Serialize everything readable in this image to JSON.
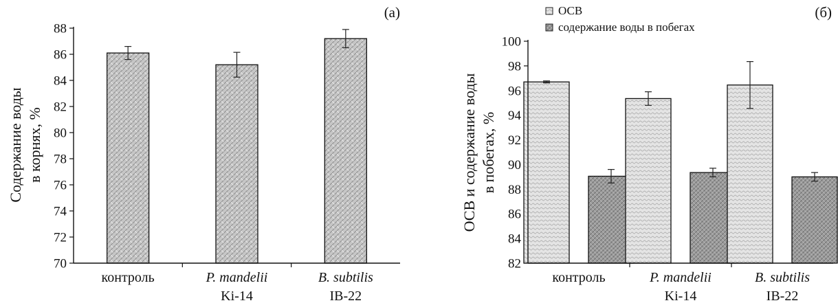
{
  "chart_data": [
    {
      "type": "bar",
      "panel_label": "(а)",
      "categories": [
        {
          "name": "контроль",
          "strain": ""
        },
        {
          "name": "P. mandelii",
          "strain": "Ki-14"
        },
        {
          "name": "B. subtilis",
          "strain": "IB-22"
        }
      ],
      "ylabel": [
        "Содержание воды",
        "в корнях, %"
      ],
      "ylim": [
        70,
        88
      ],
      "ytick_step": 2,
      "yticks": [
        "70",
        "72",
        "74",
        "76",
        "78",
        "80",
        "82",
        "84",
        "86",
        "88"
      ],
      "series": [
        {
          "name": "",
          "values": [
            86.1,
            85.2,
            87.2
          ],
          "errors": [
            0.5,
            0.95,
            0.7
          ],
          "color": "#c4c4c4"
        }
      ]
    },
    {
      "type": "bar",
      "panel_label": "(б)",
      "categories": [
        {
          "name": "контроль",
          "strain": ""
        },
        {
          "name": "P. mandelii",
          "strain": "Ki-14"
        },
        {
          "name": "B. subtilis",
          "strain": "IB-22"
        }
      ],
      "ylabel": [
        "ОСВ и содержание воды",
        "в побегах, %"
      ],
      "ylim": [
        82,
        100
      ],
      "ytick_step": 2,
      "yticks": [
        "82",
        "84",
        "86",
        "88",
        "90",
        "92",
        "94",
        "96",
        "98",
        "100"
      ],
      "legend_position": "top",
      "series": [
        {
          "name": "ОСВ",
          "values": [
            96.7,
            95.35,
            96.45
          ],
          "errors": [
            0.08,
            0.55,
            1.9
          ],
          "color": "#e2e2e2"
        },
        {
          "name": "содержание воды в побегах",
          "values": [
            89.05,
            89.35,
            89.0
          ],
          "errors": [
            0.55,
            0.35,
            0.35
          ],
          "color": "#9a9a9a"
        }
      ]
    }
  ]
}
